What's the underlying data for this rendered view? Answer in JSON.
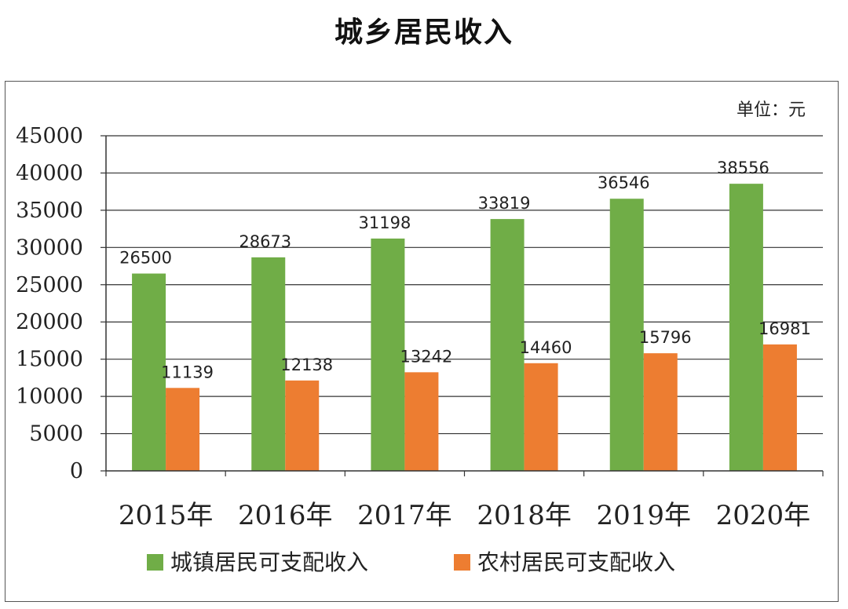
{
  "title": "城乡居民收入",
  "chart_data": {
    "type": "bar",
    "title": "城乡居民收入",
    "unit_label": "单位：元",
    "categories": [
      "2015年",
      "2016年",
      "2017年",
      "2018年",
      "2019年",
      "2020年"
    ],
    "series": [
      {
        "name": "城镇居民可支配收入",
        "color": "#70AD47",
        "values": [
          26500,
          28673,
          31198,
          33819,
          36546,
          38556
        ]
      },
      {
        "name": "农村居民可支配收入",
        "color": "#ED7D31",
        "values": [
          11139,
          12138,
          13242,
          14460,
          15796,
          16981
        ]
      }
    ],
    "yticks": [
      0,
      5000,
      10000,
      15000,
      20000,
      25000,
      30000,
      35000,
      40000,
      45000
    ],
    "ylim": [
      0,
      45000
    ],
    "grid": true,
    "legend_position": "bottom"
  }
}
